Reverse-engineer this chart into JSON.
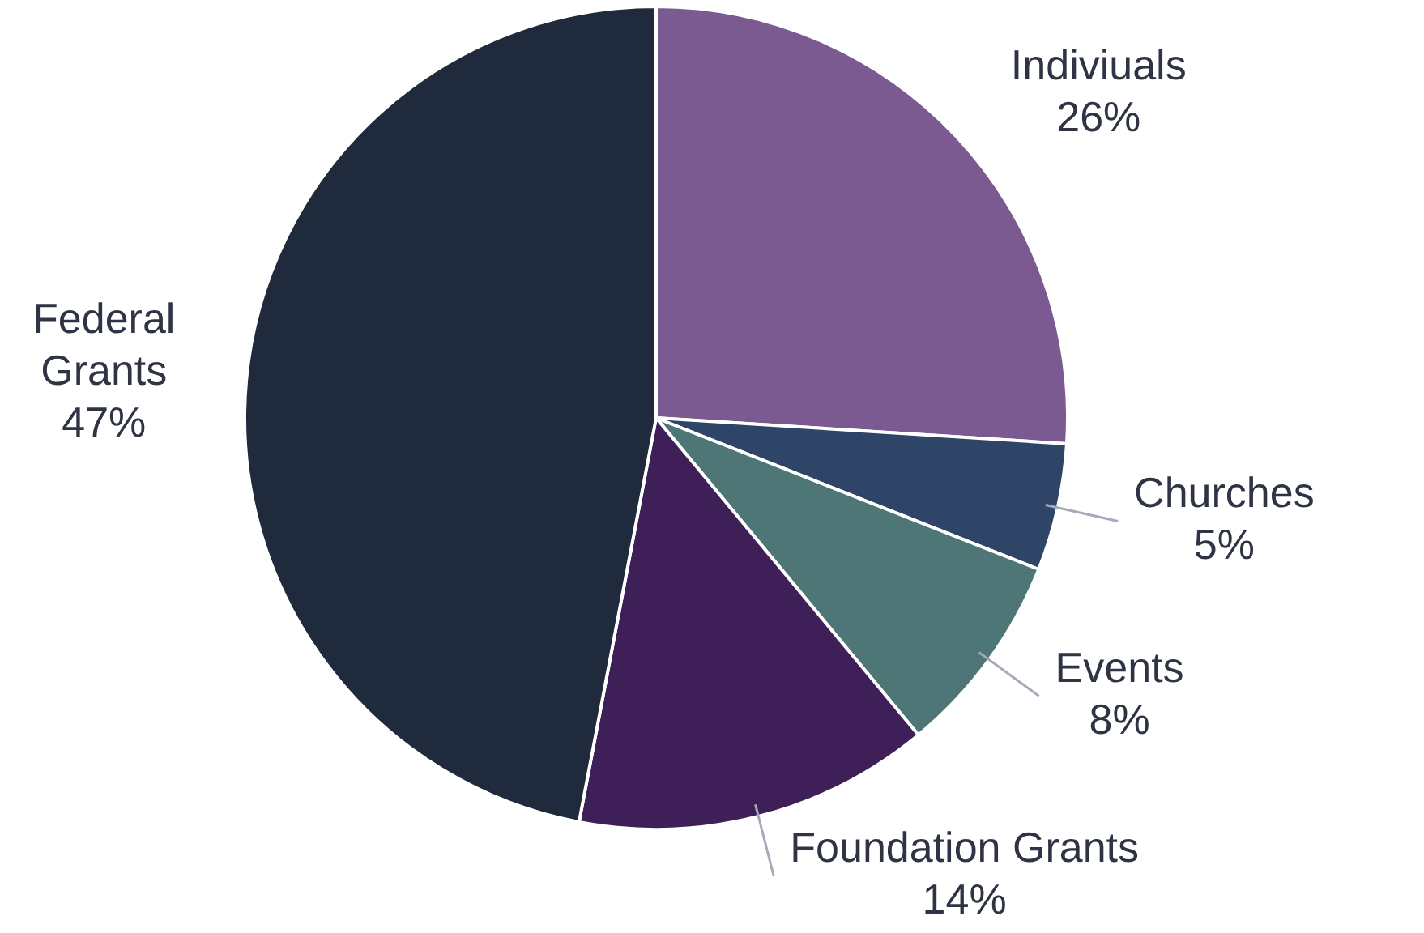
{
  "chart_data": {
    "type": "pie",
    "categories": [
      "Indiviuals",
      "Churches",
      "Events",
      "Foundation Grants",
      "Federal Grants"
    ],
    "values": [
      26,
      5,
      8,
      14,
      47
    ],
    "value_labels": [
      "26%",
      "5%",
      "8%",
      "14%",
      "47%"
    ],
    "colors": [
      "#7b5a92",
      "#2f4568",
      "#4e7676",
      "#3e1f57",
      "#1f2b3d"
    ],
    "legend": false
  }
}
